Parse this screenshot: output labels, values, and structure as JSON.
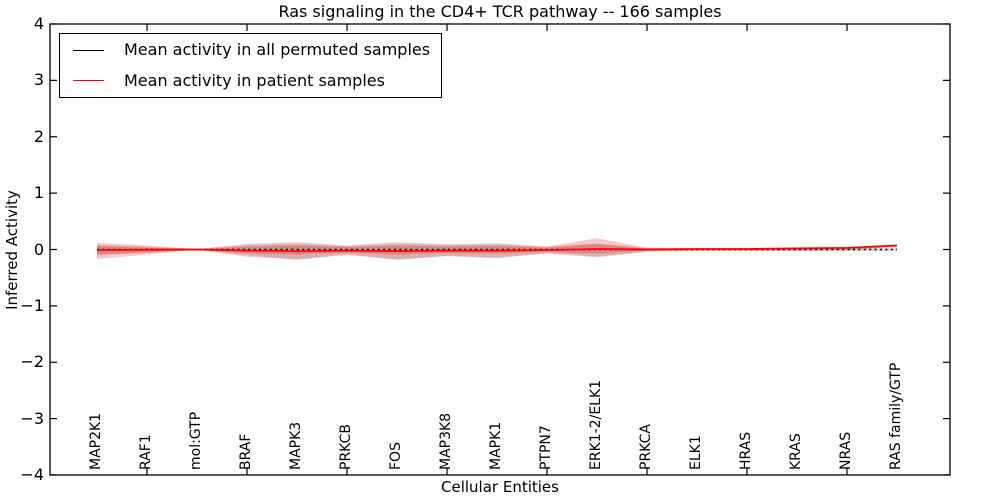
{
  "title": "Ras signaling in the CD4+ TCR pathway -- 166 samples",
  "axes": {
    "ylabel": "Inferred Activity",
    "xlabel": "Cellular Entities"
  },
  "legend": {
    "items": [
      {
        "label": "Mean activity in all permuted samples",
        "color": "#000000"
      },
      {
        "label": "Mean activity in patient samples",
        "color": "#ff0000"
      }
    ]
  },
  "colors": {
    "frame": "#000000",
    "permuted_line": "#000000",
    "patient_line": "#ff0000",
    "patient_band": "#d62728",
    "permuted_band": "#999999",
    "background": "#ffffff"
  },
  "chart_data": {
    "type": "line",
    "title": "Ras signaling in the CD4+ TCR pathway -- 166 samples",
    "xlabel": "Cellular Entities",
    "ylabel": "Inferred Activity",
    "ylim": [
      -4,
      4
    ],
    "grid": false,
    "legend_position": "upper left",
    "y_ticks": {
      "values": [
        4,
        3,
        2,
        1,
        0,
        -1,
        -2,
        -3,
        -4
      ],
      "labels": [
        "4",
        "3",
        "2",
        "1",
        "0",
        "−1",
        "−2",
        "−3",
        "−4"
      ]
    },
    "x_tick_indices": [
      1,
      3,
      5,
      7,
      9,
      11,
      13,
      15
    ],
    "categories": [
      "MAP2K1",
      "RAF1",
      "mol:GTP",
      "BRAF",
      "MAPK3",
      "PRKCB",
      "FOS",
      "MAP3K8",
      "MAPK1",
      "PTPN7",
      "ERK1-2/ELK1",
      "PRKCA",
      "ELK1",
      "HRAS",
      "KRAS",
      "NRAS",
      "RAS family/GTP"
    ],
    "series": [
      {
        "name": "Mean activity in all permuted samples",
        "color": "#000000",
        "style": "dotted",
        "values": [
          0,
          0,
          0,
          0,
          0,
          0,
          0,
          0,
          0,
          0,
          0,
          0,
          0,
          0,
          0,
          0,
          0
        ]
      },
      {
        "name": "Mean activity in patient samples",
        "color": "#ff0000",
        "style": "solid",
        "values": [
          -0.01,
          -0.005,
          0,
          -0.02,
          -0.03,
          -0.02,
          -0.03,
          -0.02,
          -0.02,
          -0.01,
          0.01,
          0,
          0.01,
          0.01,
          0.02,
          0.03,
          0.07
        ]
      }
    ],
    "bands": [
      {
        "name": "permuted-std-band",
        "color": "#999999",
        "opacity": 0.35,
        "upper": [
          0.08,
          0.05,
          0.01,
          0.08,
          0.1,
          0.06,
          0.1,
          0.08,
          0.09,
          0.05,
          0.1,
          0.03,
          0.025,
          0.025,
          0.025,
          0.025,
          0.025
        ],
        "lower": [
          -0.1,
          -0.06,
          -0.01,
          -0.1,
          -0.19,
          -0.08,
          -0.19,
          -0.11,
          -0.16,
          -0.06,
          -0.12,
          -0.04,
          -0.03,
          -0.03,
          -0.03,
          -0.03,
          -0.03
        ]
      },
      {
        "name": "patient-std-band-outer",
        "color": "#d62728",
        "opacity": 0.25,
        "upper": [
          0.12,
          0.07,
          0.005,
          0.1,
          0.13,
          0.07,
          0.13,
          0.09,
          0.11,
          0.05,
          0.2,
          0.03,
          0.02,
          0.02,
          0.02,
          0.03,
          0.1
        ],
        "lower": [
          -0.17,
          -0.09,
          -0.005,
          -0.13,
          -0.17,
          -0.1,
          -0.17,
          -0.12,
          -0.14,
          -0.07,
          -0.14,
          -0.04,
          -0.02,
          -0.02,
          -0.02,
          -0.01,
          0.04
        ]
      },
      {
        "name": "patient-std-band-inner",
        "color": "#d62728",
        "opacity": 0.3,
        "upper": [
          0.06,
          0.03,
          0.002,
          0.05,
          0.07,
          0.04,
          0.07,
          0.05,
          0.06,
          0.03,
          0.1,
          0.015,
          0.012,
          0.012,
          0.012,
          0.02,
          0.085
        ],
        "lower": [
          -0.09,
          -0.05,
          -0.002,
          -0.07,
          -0.09,
          -0.05,
          -0.09,
          -0.06,
          -0.07,
          -0.04,
          -0.07,
          -0.02,
          -0.012,
          -0.012,
          -0.012,
          -0.005,
          0.055
        ]
      }
    ]
  }
}
